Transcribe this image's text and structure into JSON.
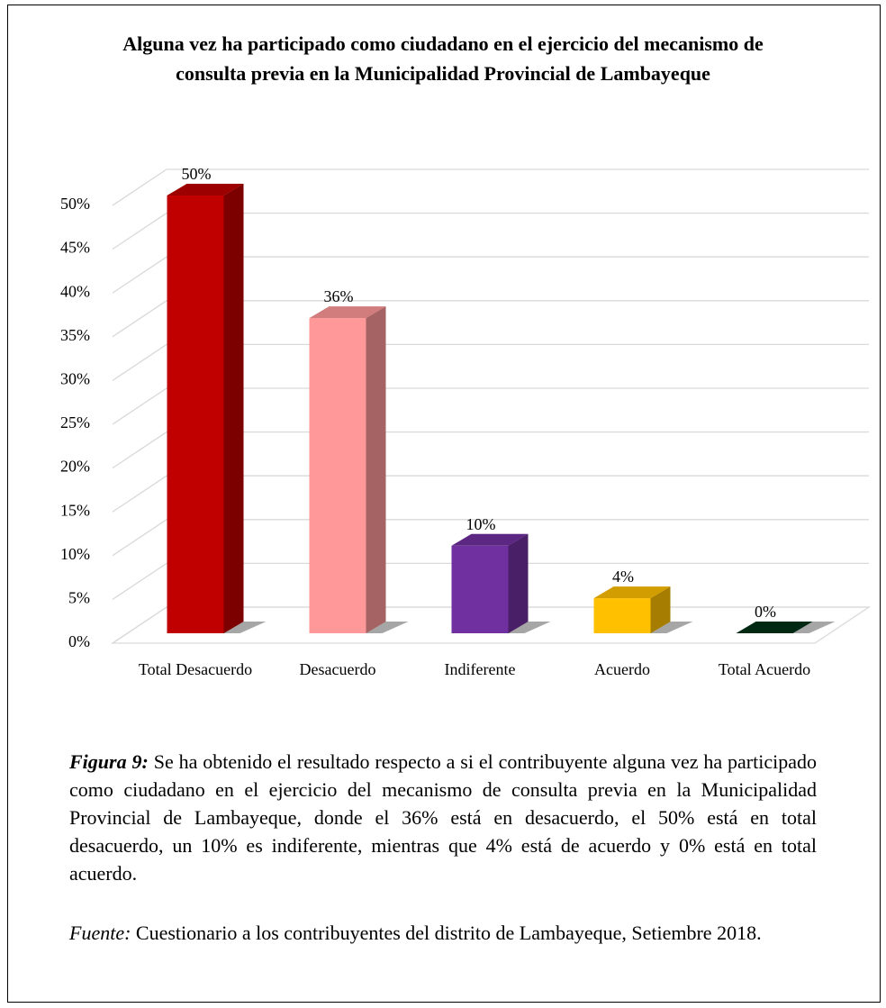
{
  "chart_data": {
    "type": "bar",
    "title": "Alguna vez ha participado como ciudadano en el ejercicio del mecanismo de consulta previa en la Municipalidad Provincial de Lambayeque",
    "categories": [
      "Total Desacuerdo",
      "Desacuerdo",
      "Indiferente",
      "Acuerdo",
      "Total Acuerdo"
    ],
    "values": [
      50,
      36,
      10,
      4,
      0
    ],
    "value_labels": [
      "50%",
      "36%",
      "10%",
      "4%",
      "0%"
    ],
    "colors": [
      "#c00000",
      "#ff9999",
      "#7030a0",
      "#ffc000",
      "#003318"
    ],
    "ylim": [
      0,
      50
    ],
    "yticks": [
      {
        "value": 0,
        "label": "0%"
      },
      {
        "value": 5,
        "label": "5%"
      },
      {
        "value": 10,
        "label": "10%"
      },
      {
        "value": 15,
        "label": "15%"
      },
      {
        "value": 20,
        "label": "20%"
      },
      {
        "value": 25,
        "label": "25%"
      },
      {
        "value": 30,
        "label": "30%"
      },
      {
        "value": 35,
        "label": "35%"
      },
      {
        "value": 40,
        "label": "40%"
      },
      {
        "value": 45,
        "label": "45%"
      },
      {
        "value": 50,
        "label": "50%"
      }
    ],
    "grid": true
  },
  "caption": {
    "label": "Figura 9:",
    "text": "Se ha obtenido el resultado respecto a si el contribuyente alguna vez ha participado como ciudadano en el ejercicio del mecanismo de consulta previa en la Municipalidad Provincial de Lambayeque, donde el 36% está en desacuerdo, el 50% está en total desacuerdo, un 10% es indiferente, mientras que 4% está de acuerdo y 0% está en total acuerdo."
  },
  "source": {
    "label": "Fuente:",
    "text": "Cuestionario a los contribuyentes del distrito de Lambayeque, Setiembre 2018."
  }
}
